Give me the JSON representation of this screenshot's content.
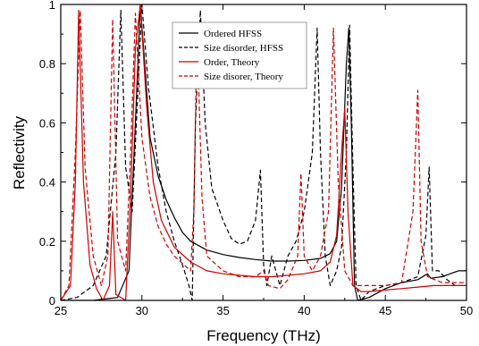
{
  "chart_data": {
    "type": "line",
    "title": "",
    "xlabel": "Frequency (THz)",
    "ylabel": "Reflectivity",
    "xlim": [
      25,
      50
    ],
    "ylim": [
      0,
      1
    ],
    "xticks": [
      25,
      30,
      35,
      40,
      45,
      50
    ],
    "yticks": [
      0,
      0.2,
      0.4,
      0.6,
      0.8,
      1
    ],
    "ytick_labels": [
      "0",
      "0.2",
      "0.4",
      "0.6",
      "0.8",
      "1"
    ],
    "grid": false,
    "legend_position": "top-center",
    "series": [
      {
        "name": "Ordered HFSS",
        "color": "#000000",
        "dash": "solid",
        "points": [
          [
            25,
            0
          ],
          [
            27,
            0
          ],
          [
            28.5,
            0.01
          ],
          [
            29.2,
            0.1
          ],
          [
            29.6,
            0.6
          ],
          [
            29.9,
            1.0
          ],
          [
            30.2,
            0.78
          ],
          [
            30.5,
            0.55
          ],
          [
            31,
            0.42
          ],
          [
            31.5,
            0.34
          ],
          [
            32,
            0.28
          ],
          [
            32.5,
            0.23
          ],
          [
            33,
            0.2
          ],
          [
            34,
            0.17
          ],
          [
            35,
            0.155
          ],
          [
            36,
            0.145
          ],
          [
            37,
            0.138
          ],
          [
            38,
            0.133
          ],
          [
            39,
            0.133
          ],
          [
            40,
            0.135
          ],
          [
            41,
            0.142
          ],
          [
            41.6,
            0.158
          ],
          [
            42,
            0.2
          ],
          [
            42.3,
            0.38
          ],
          [
            42.6,
            0.8
          ],
          [
            42.75,
            0.92
          ],
          [
            42.9,
            0.6
          ],
          [
            43.1,
            0.05
          ],
          [
            43.3,
            0
          ],
          [
            44,
            0.01
          ],
          [
            45,
            0.04
          ],
          [
            46,
            0.06
          ],
          [
            47,
            0.07
          ],
          [
            47.6,
            0.09
          ],
          [
            47.8,
            0.075
          ],
          [
            48.5,
            0.08
          ],
          [
            49,
            0.09
          ],
          [
            49.5,
            0.1
          ],
          [
            50,
            0.1
          ]
        ]
      },
      {
        "name": "Size disorder, HFSS",
        "color": "#000000",
        "dash": "dashed",
        "points": [
          [
            25,
            0
          ],
          [
            26,
            0.01
          ],
          [
            27,
            0.05
          ],
          [
            27.8,
            0.15
          ],
          [
            28.4,
            0.5
          ],
          [
            28.7,
            0.98
          ],
          [
            29,
            0.45
          ],
          [
            29.4,
            0.3
          ],
          [
            29.7,
            0.65
          ],
          [
            30,
            1.0
          ],
          [
            30.4,
            0.72
          ],
          [
            31,
            0.45
          ],
          [
            31.5,
            0.3
          ],
          [
            32,
            0.2
          ],
          [
            32.5,
            0.12
          ],
          [
            32.9,
            0.05
          ],
          [
            33.1,
            0
          ],
          [
            33.3,
            0.6
          ],
          [
            33.6,
            0.98
          ],
          [
            33.9,
            0.6
          ],
          [
            34.3,
            0.38
          ],
          [
            35,
            0.27
          ],
          [
            35.5,
            0.21
          ],
          [
            36,
            0.19
          ],
          [
            36.5,
            0.2
          ],
          [
            37,
            0.27
          ],
          [
            37.3,
            0.44
          ],
          [
            37.5,
            0.12
          ],
          [
            37.7,
            0.05
          ],
          [
            38,
            0.15
          ],
          [
            38.5,
            0.05
          ],
          [
            39,
            0.15
          ],
          [
            39.5,
            0.2
          ],
          [
            40,
            0.3
          ],
          [
            40.5,
            0.5
          ],
          [
            40.8,
            0.92
          ],
          [
            41,
            0.5
          ],
          [
            41.3,
            0.15
          ],
          [
            41.6,
            0.05
          ],
          [
            42,
            0.1
          ],
          [
            42.3,
            0.18
          ],
          [
            42.6,
            0.5
          ],
          [
            42.8,
            0.93
          ],
          [
            43,
            0.45
          ],
          [
            43.2,
            0.05
          ],
          [
            43.5,
            0
          ],
          [
            44,
            0.03
          ],
          [
            45,
            0.05
          ],
          [
            46,
            0.06
          ],
          [
            47,
            0.08
          ],
          [
            47.5,
            0.22
          ],
          [
            47.7,
            0.45
          ],
          [
            47.9,
            0.1
          ],
          [
            48.3,
            0.1
          ],
          [
            48.8,
            0.07
          ],
          [
            49.3,
            0.05
          ],
          [
            50,
            0.05
          ]
        ]
      },
      {
        "name": "Order, Theory",
        "color": "#cc0000",
        "dash": "solid",
        "points": [
          [
            25,
            0
          ],
          [
            25.6,
            0.05
          ],
          [
            25.9,
            0.4
          ],
          [
            26.1,
            0.98
          ],
          [
            26.4,
            0.4
          ],
          [
            26.8,
            0.12
          ],
          [
            27.2,
            0.04
          ],
          [
            27.6,
            0
          ],
          [
            28,
            0.05
          ],
          [
            28.2,
            0.3
          ],
          [
            28.4,
            0.02
          ],
          [
            29,
            0
          ],
          [
            29.3,
            0.35
          ],
          [
            29.6,
            0.85
          ],
          [
            29.9,
            1.0
          ],
          [
            30.3,
            0.65
          ],
          [
            30.7,
            0.4
          ],
          [
            31.2,
            0.27
          ],
          [
            32,
            0.18
          ],
          [
            33,
            0.13
          ],
          [
            34,
            0.1
          ],
          [
            35,
            0.09
          ],
          [
            36,
            0.085
          ],
          [
            37,
            0.08
          ],
          [
            38,
            0.08
          ],
          [
            39,
            0.085
          ],
          [
            40,
            0.09
          ],
          [
            41,
            0.1
          ],
          [
            41.6,
            0.13
          ],
          [
            42,
            0.22
          ],
          [
            42.3,
            0.5
          ],
          [
            42.5,
            0.65
          ],
          [
            42.7,
            0.3
          ],
          [
            43,
            0.05
          ],
          [
            43.5,
            0.03
          ],
          [
            44,
            0.03
          ],
          [
            45,
            0.035
          ],
          [
            46,
            0.04
          ],
          [
            47,
            0.045
          ],
          [
            48,
            0.05
          ],
          [
            49,
            0.05
          ],
          [
            50,
            0.05
          ]
        ]
      },
      {
        "name": "Size disorer, Theory",
        "color": "#cc0000",
        "dash": "dashed",
        "points": [
          [
            25,
            0
          ],
          [
            25.5,
            0.05
          ],
          [
            25.9,
            0.5
          ],
          [
            26.2,
            0.98
          ],
          [
            26.5,
            0.45
          ],
          [
            27,
            0.15
          ],
          [
            27.5,
            0.05
          ],
          [
            27.9,
            0.15
          ],
          [
            28.2,
            0.95
          ],
          [
            28.5,
            0.2
          ],
          [
            29,
            0.1
          ],
          [
            29.3,
            0.5
          ],
          [
            29.6,
            0.97
          ],
          [
            30,
            0.55
          ],
          [
            30.5,
            0.35
          ],
          [
            31,
            0.25
          ],
          [
            31.5,
            0.19
          ],
          [
            32,
            0.15
          ],
          [
            33,
            0.1
          ],
          [
            33.2,
            0.3
          ],
          [
            33.4,
            0.92
          ],
          [
            33.7,
            0.35
          ],
          [
            34,
            0.15
          ],
          [
            35,
            0.1
          ],
          [
            36,
            0.08
          ],
          [
            37,
            0.08
          ],
          [
            37.5,
            0.1
          ],
          [
            37.8,
            0.05
          ],
          [
            38.5,
            0.04
          ],
          [
            39,
            0.07
          ],
          [
            39.6,
            0.15
          ],
          [
            39.8,
            0.43
          ],
          [
            40,
            0.15
          ],
          [
            40.5,
            0.1
          ],
          [
            41,
            0.15
          ],
          [
            41.5,
            0.3
          ],
          [
            41.8,
            0.92
          ],
          [
            42.1,
            0.4
          ],
          [
            42.5,
            0.1
          ],
          [
            43,
            0.05
          ],
          [
            44,
            0.05
          ],
          [
            45,
            0.05
          ],
          [
            46,
            0.06
          ],
          [
            46.7,
            0.3
          ],
          [
            47,
            0.71
          ],
          [
            47.2,
            0.2
          ],
          [
            47.6,
            0.08
          ],
          [
            48.5,
            0.06
          ],
          [
            49.5,
            0.06
          ],
          [
            50,
            0.06
          ]
        ]
      }
    ]
  }
}
